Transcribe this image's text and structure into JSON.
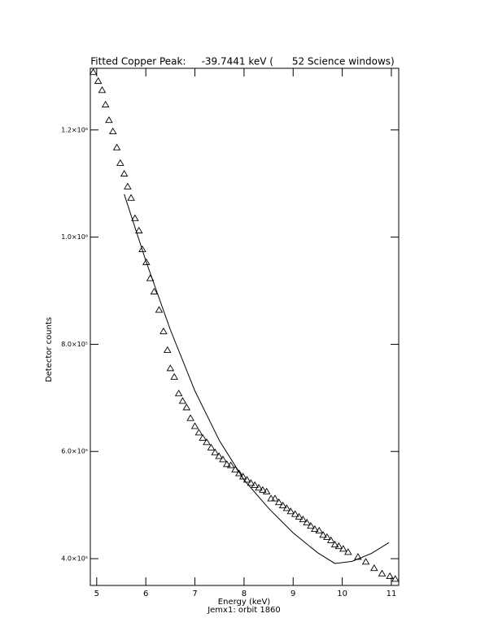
{
  "chart_data": {
    "type": "scatter",
    "title": "Fitted Copper Peak:     -39.7441 keV (      52 Science windows)",
    "x_label": "Energy (keV)",
    "subtitle": "Jemx1: orbit 1860",
    "y_label": "Detector counts",
    "xlim": [
      4.87,
      11.15
    ],
    "ylim": [
      350000,
      1315000
    ],
    "xticks": [
      5,
      6,
      7,
      8,
      9,
      10,
      11
    ],
    "yticks": [
      {
        "value": 400000,
        "label": "4.0×10⁵"
      },
      {
        "value": 600000,
        "label": "6.0×10⁵"
      },
      {
        "value": 800000,
        "label": "8.0×10⁵"
      },
      {
        "value": 1000000,
        "label": "1.0×10⁶"
      },
      {
        "value": 1200000,
        "label": "1.2×10⁶"
      }
    ],
    "series": [
      {
        "marker": "triangle",
        "color": "#000000",
        "x": [
          4.93,
          5.03,
          5.11,
          5.18,
          5.25,
          5.33,
          5.41,
          5.48,
          5.56,
          5.63,
          5.7,
          5.78,
          5.86,
          5.93,
          6.01,
          6.09,
          6.17,
          6.27,
          6.36,
          6.44,
          6.5,
          6.58,
          6.67,
          6.75,
          6.83,
          6.91,
          7.0,
          7.08,
          7.16,
          7.24,
          7.33,
          7.41,
          7.49,
          7.57,
          7.65,
          7.73,
          7.82,
          7.9,
          7.98,
          8.06,
          8.14,
          8.22,
          8.3,
          8.38,
          8.46,
          8.55,
          8.63,
          8.71,
          8.79,
          8.87,
          8.95,
          9.04,
          9.12,
          9.2,
          9.28,
          9.36,
          9.44,
          9.53,
          9.61,
          9.69,
          9.77,
          9.85,
          9.93,
          10.02,
          10.12,
          10.32,
          10.48,
          10.65,
          10.81,
          10.97,
          11.08
        ],
        "values": [
          1307600,
          1291000,
          1274000,
          1247000,
          1218000,
          1197000,
          1167000,
          1138000,
          1118000,
          1094000,
          1073000,
          1035000,
          1012000,
          977000,
          953000,
          923000,
          898000,
          864000,
          824000,
          789000,
          755000,
          739000,
          708000,
          694000,
          682000,
          662000,
          647000,
          635000,
          625000,
          617000,
          607000,
          598000,
          591000,
          585000,
          576000,
          574000,
          566000,
          559000,
          553000,
          547000,
          541000,
          537000,
          532000,
          528000,
          525000,
          512000,
          512000,
          505000,
          499000,
          494000,
          488000,
          483000,
          478000,
          473000,
          467000,
          461000,
          455000,
          452000,
          444000,
          440000,
          434000,
          426000,
          423000,
          418000,
          412000,
          403000,
          394000,
          382000,
          372000,
          367000,
          362000
        ]
      },
      {
        "marker": "none",
        "color": "#000000",
        "x": [
          5.56,
          6.0,
          6.5,
          7.0,
          7.5,
          8.0,
          8.5,
          9.0,
          9.5,
          9.85,
          10.2,
          10.6,
          10.95
        ],
        "values": [
          1080000,
          956000,
          827000,
          713000,
          620000,
          547000,
          494000,
          448000,
          411000,
          391000,
          395000,
          410000,
          430000
        ]
      }
    ]
  }
}
